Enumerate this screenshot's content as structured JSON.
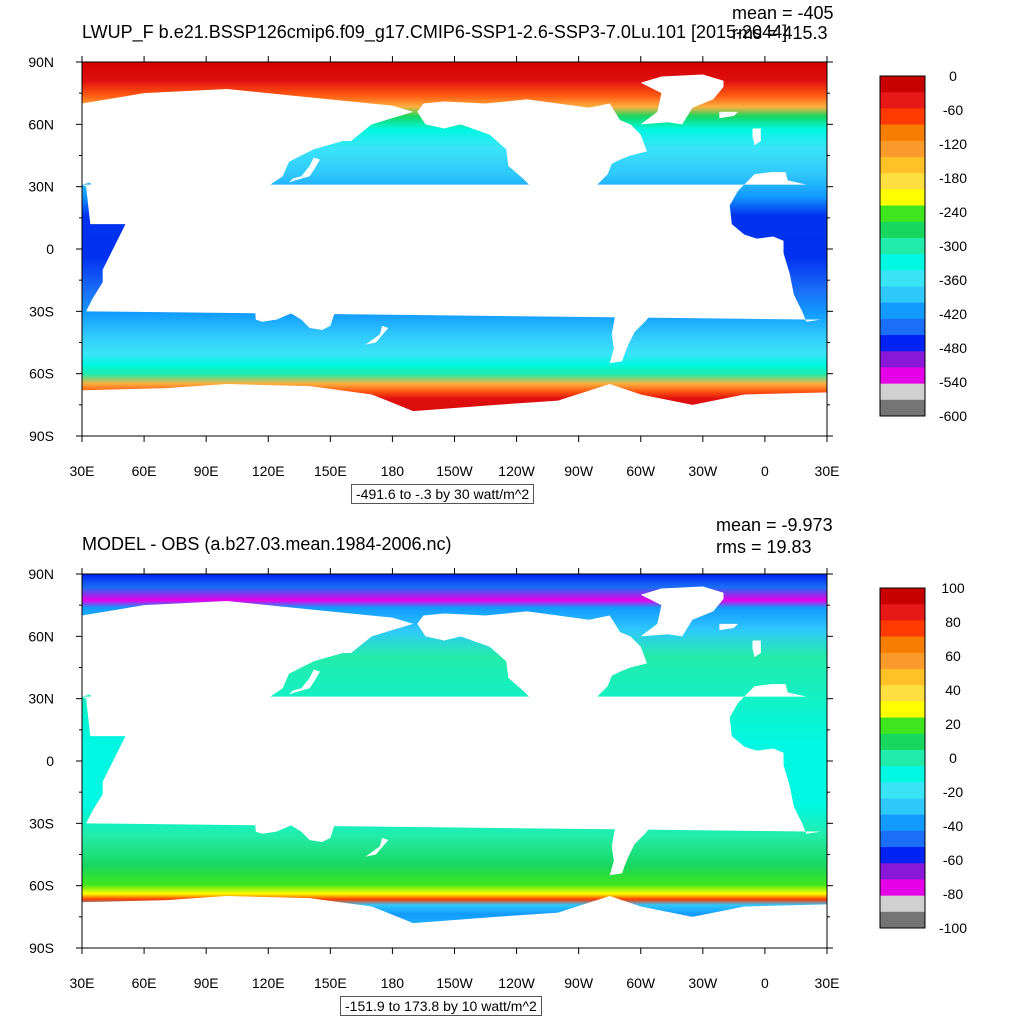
{
  "panels": [
    {
      "title": "LWUP_F b.e21.BSSP126cmip6.f09_g17.CMIP6-SSP1-2.6-SSP3-7.0Lu.101 [2015-2044]",
      "mean_label": "mean = -405",
      "rms_label": "rms = 415.3",
      "contour_info": "-491.6 to -.3 by 30 watt/m^2"
    },
    {
      "title": "MODEL - OBS (a.b27.03.mean.1984-2006.nc)",
      "mean_label": "mean = -9.973",
      "rms_label": "rms = 19.83",
      "contour_info": "-151.9 to 173.8 by 10 watt/m^2"
    }
  ],
  "chart_data": [
    {
      "type": "heatmap",
      "title": "LWUP_F b.e21.BSSP126cmip6.f09_g17.CMIP6-SSP1-2.6-SSP3-7.0Lu.101 [2015-2044]",
      "mean": -405,
      "rms": 415.3,
      "units": "watt/m^2",
      "x_ticks": [
        "30E",
        "60E",
        "90E",
        "120E",
        "150E",
        "180",
        "150W",
        "120W",
        "90W",
        "60W",
        "30W",
        "0",
        "30E"
      ],
      "y_ticks": [
        "90N",
        "60N",
        "30N",
        "0",
        "30S",
        "60S",
        "90S"
      ],
      "xlim_deg_east": [
        30,
        390
      ],
      "ylim_lat": [
        -90,
        90
      ],
      "colorbar_labels": [
        "0",
        "-60",
        "-120",
        "-180",
        "-240",
        "-300",
        "-360",
        "-420",
        "-480",
        "-540",
        "-600"
      ],
      "colorbar_colors": [
        "#c80000",
        "#e81818",
        "#ff3a00",
        "#f77d00",
        "#fb9a2a",
        "#ffc126",
        "#fde040",
        "#ffff00",
        "#3fe61e",
        "#18d75f",
        "#23ecaa",
        "#00f7e1",
        "#3ae4f7",
        "#2fc8fb",
        "#129aff",
        "#1a6ef7",
        "#0022f2",
        "#8a18d8",
        "#e600e6",
        "#d0d0d0",
        "#757575"
      ],
      "zonal_profile": [
        {
          "lat": 85,
          "value": -25
        },
        {
          "lat": 78,
          "value": -100
        },
        {
          "lat": 72,
          "value": -190
        },
        {
          "lat": 65,
          "value": -300
        },
        {
          "lat": 55,
          "value": -350
        },
        {
          "lat": 45,
          "value": -380
        },
        {
          "lat": 35,
          "value": -410
        },
        {
          "lat": 20,
          "value": -440
        },
        {
          "lat": 5,
          "value": -470
        },
        {
          "lat": 0,
          "value": -480
        },
        {
          "lat": -10,
          "value": -465
        },
        {
          "lat": -20,
          "value": -440
        },
        {
          "lat": -30,
          "value": -420
        },
        {
          "lat": -40,
          "value": -395
        },
        {
          "lat": -50,
          "value": -350
        },
        {
          "lat": -57,
          "value": -320
        },
        {
          "lat": -62,
          "value": -280
        },
        {
          "lat": -66,
          "value": -150
        },
        {
          "lat": -70,
          "value": -60
        }
      ]
    },
    {
      "type": "heatmap",
      "title": "MODEL - OBS (a.b27.03.mean.1984-2006.nc)",
      "mean": -9.973,
      "rms": 19.83,
      "units": "watt/m^2",
      "x_ticks": [
        "30E",
        "60E",
        "90E",
        "120E",
        "150E",
        "180",
        "150W",
        "120W",
        "90W",
        "60W",
        "30W",
        "0",
        "30E"
      ],
      "y_ticks": [
        "90N",
        "60N",
        "30N",
        "0",
        "30S",
        "60S",
        "90S"
      ],
      "xlim_deg_east": [
        30,
        390
      ],
      "ylim_lat": [
        -90,
        90
      ],
      "colorbar_labels": [
        "100",
        "80",
        "60",
        "40",
        "20",
        "0",
        "-20",
        "-40",
        "-60",
        "-80",
        "-100"
      ],
      "colorbar_colors": [
        "#c80000",
        "#e81818",
        "#ff3a00",
        "#f77d00",
        "#fb9a2a",
        "#ffc126",
        "#fde040",
        "#ffff00",
        "#3fe61e",
        "#18d75f",
        "#23ecaa",
        "#00f7e1",
        "#3ae4f7",
        "#2fc8fb",
        "#129aff",
        "#1a6ef7",
        "#0022f2",
        "#8a18d8",
        "#e600e6",
        "#d0d0d0",
        "#757575"
      ],
      "zonal_profile": [
        {
          "lat": 85,
          "value": -60
        },
        {
          "lat": 75,
          "value": -55
        },
        {
          "lat": 65,
          "value": -30
        },
        {
          "lat": 50,
          "value": -10
        },
        {
          "lat": 30,
          "value": -10
        },
        {
          "lat": 10,
          "value": -15
        },
        {
          "lat": -10,
          "value": -10
        },
        {
          "lat": -20,
          "value": -5
        },
        {
          "lat": -35,
          "value": -5
        },
        {
          "lat": -45,
          "value": 0
        },
        {
          "lat": -55,
          "value": -5
        },
        {
          "lat": -62,
          "value": 15
        },
        {
          "lat": -68,
          "value": -40
        }
      ]
    }
  ]
}
